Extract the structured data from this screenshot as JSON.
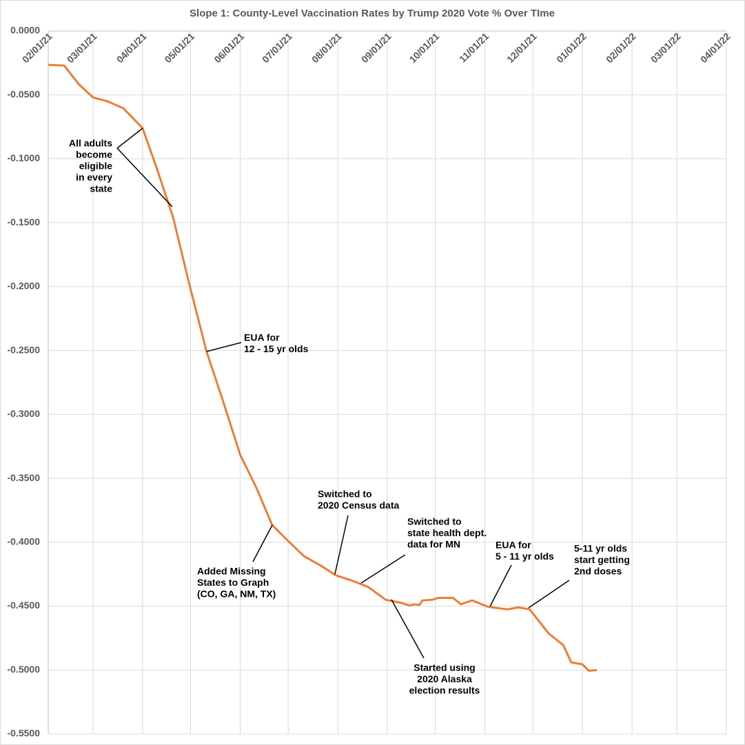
{
  "chart_data": {
    "type": "line",
    "title": "Slope 1: County-Level Vaccination Rates by Trump 2020 Vote % Over TIme",
    "x": [
      "02/01/21",
      "02/11/21",
      "02/20/21",
      "03/01/21",
      "03/10/21",
      "03/20/21",
      "04/01/21",
      "04/10/21",
      "04/20/21",
      "04/30/21",
      "05/11/21",
      "05/21/21",
      "06/01/21",
      "06/11/21",
      "06/21/21",
      "07/01/21",
      "07/11/21",
      "07/21/21",
      "07/31/21",
      "08/10/21",
      "08/20/21",
      "08/31/21",
      "09/10/21",
      "09/15/21",
      "09/18/21",
      "09/21/21",
      "09/23/21",
      "09/29/21",
      "10/03/21",
      "10/12/21",
      "10/17/21",
      "10/24/21",
      "11/03/21",
      "11/15/21",
      "11/22/21",
      "11/29/21",
      "12/11/21",
      "12/20/21",
      "12/25/21",
      "01/01/22",
      "01/05/22",
      "01/10/22"
    ],
    "series": [
      {
        "color": "#ed7d31",
        "values": [
          -0.0265,
          -0.027,
          -0.0415,
          -0.052,
          -0.055,
          -0.0605,
          -0.076,
          -0.108,
          -0.1455,
          -0.197,
          -0.251,
          -0.2885,
          -0.3315,
          -0.357,
          -0.3865,
          -0.399,
          -0.411,
          -0.418,
          -0.426,
          -0.43,
          -0.435,
          -0.445,
          -0.4475,
          -0.4495,
          -0.4485,
          -0.449,
          -0.4455,
          -0.445,
          -0.4435,
          -0.4435,
          -0.4485,
          -0.4455,
          -0.4505,
          -0.4525,
          -0.451,
          -0.4525,
          -0.4715,
          -0.4805,
          -0.494,
          -0.4955,
          -0.5005,
          -0.5
        ]
      }
    ],
    "xlim": [
      "02/01/21",
      "04/01/22"
    ],
    "xticks": [
      "02/01/21",
      "03/01/21",
      "04/01/21",
      "05/01/21",
      "06/01/21",
      "07/01/21",
      "08/01/21",
      "09/01/21",
      "10/01/21",
      "11/01/21",
      "12/01/21",
      "01/01/22",
      "02/01/22",
      "03/01/22",
      "04/01/22"
    ],
    "ylim": [
      -0.55,
      0
    ],
    "yticks": [
      {
        "value": 0,
        "label": "0.0000"
      },
      {
        "value": -0.05,
        "label": "-0.0500"
      },
      {
        "value": -0.1,
        "label": "-0.1000"
      },
      {
        "value": -0.15,
        "label": "-0.1500"
      },
      {
        "value": -0.2,
        "label": "-0.2000"
      },
      {
        "value": -0.25,
        "label": "-0.2500"
      },
      {
        "value": -0.3,
        "label": "-0.3000"
      },
      {
        "value": -0.35,
        "label": "-0.3500"
      },
      {
        "value": -0.4,
        "label": "-0.4000"
      },
      {
        "value": -0.45,
        "label": "-0.4500"
      },
      {
        "value": -0.5,
        "label": "-0.5000"
      },
      {
        "value": -0.55,
        "label": "-0.5500"
      }
    ],
    "grid": true,
    "annotations": [
      {
        "text": [
          "All adults",
          "become",
          "eligible",
          "in every",
          "state"
        ]
      },
      {
        "text": [
          "EUA for",
          "12 - 15 yr olds"
        ]
      },
      {
        "text": [
          "Added Missing",
          "States to Graph",
          "(CO, GA, NM, TX)"
        ]
      },
      {
        "text": [
          "Switched to",
          "2020 Census data"
        ]
      },
      {
        "text": [
          "Switched to",
          "state health dept.",
          "data for MN"
        ]
      },
      {
        "text": [
          "Started using",
          "2020 Alaska",
          "election results"
        ]
      },
      {
        "text": [
          "EUA for",
          "5 - 11 yr olds"
        ]
      },
      {
        "text": [
          "5-11 yr olds",
          "start getting",
          "2nd doses"
        ]
      }
    ]
  }
}
